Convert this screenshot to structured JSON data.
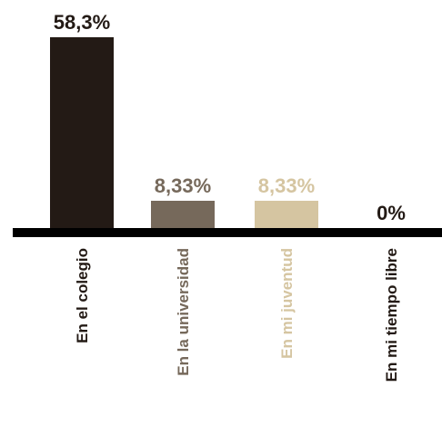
{
  "chart_data": {
    "type": "bar",
    "categories": [
      "En el colegio",
      "En la universidad",
      "En mi juventud",
      "En mi tiempo libre"
    ],
    "values": [
      58.3,
      8.33,
      8.33,
      0
    ],
    "value_labels": [
      "58,3%",
      "8,33%",
      "8,33%",
      "0%"
    ],
    "colors": [
      "#231a15",
      "#76695b",
      "#d5c5a1",
      "#231a15"
    ],
    "label_colors": [
      "#231a15",
      "#76695b",
      "#d5c5a1",
      "#231a15"
    ],
    "category_label_colors": [
      "#231a15",
      "#76695b",
      "#d5c5a1",
      "#231a15"
    ],
    "axis_color": "#000000",
    "ylim": [
      0,
      58.3
    ],
    "grid": false,
    "legend": "none"
  }
}
